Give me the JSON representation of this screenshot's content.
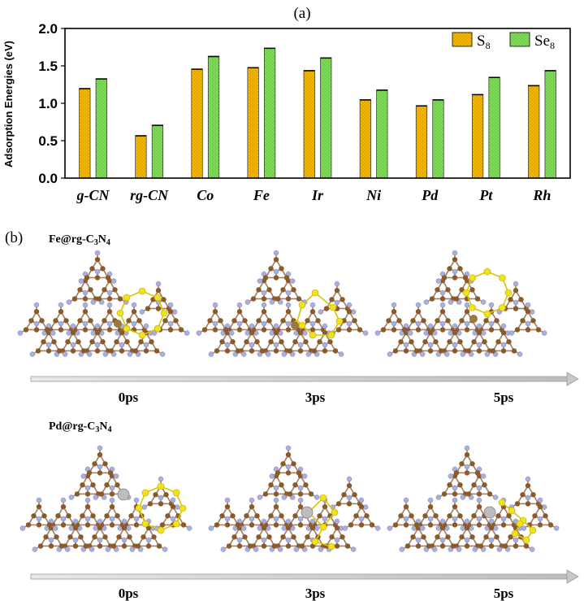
{
  "panel_a_label": "(a)",
  "panel_b_label": "(b)",
  "chart_data": {
    "type": "bar",
    "title": "",
    "xlabel": "",
    "ylabel": "Adsorption Energies (eV)",
    "ylim": [
      0,
      2.0
    ],
    "yticks": [
      "0.0",
      "0.5",
      "1.0",
      "1.5",
      "2.0"
    ],
    "categories": [
      "g-CN",
      "rg-CN",
      "Co",
      "Fe",
      "Ir",
      "Ni",
      "Pd",
      "Pt",
      "Rh"
    ],
    "series": [
      {
        "name": "S8",
        "legend_base": "S",
        "legend_sub": "8",
        "color": "#f5b800",
        "values": [
          1.2,
          0.57,
          1.46,
          1.48,
          1.44,
          1.05,
          0.97,
          1.12,
          1.24
        ]
      },
      {
        "name": "Se8",
        "legend_base": "Se",
        "legend_sub": "8",
        "color": "#7ed957",
        "values": [
          1.33,
          0.71,
          1.63,
          1.74,
          1.61,
          1.18,
          1.05,
          1.35,
          1.44
        ]
      }
    ],
    "legend_position": "top-right"
  },
  "panel_b": {
    "rows": [
      {
        "label_base": "Fe@rg-C",
        "label_sub1": "3",
        "label_mid": "N",
        "label_sub2": "4",
        "times": [
          "0ps",
          "3ps",
          "5ps"
        ]
      },
      {
        "label_base": "Pd@rg-C",
        "label_sub1": "3",
        "label_mid": "N",
        "label_sub2": "4",
        "times": [
          "0ps",
          "3ps",
          "5ps"
        ]
      }
    ]
  },
  "colors": {
    "carbon": "#8b5a2b",
    "nitrogen": "#a9aedb",
    "sulfur": "#f2e21c",
    "iron": "#9a7a3c",
    "palladium": "#bdbdbd"
  }
}
